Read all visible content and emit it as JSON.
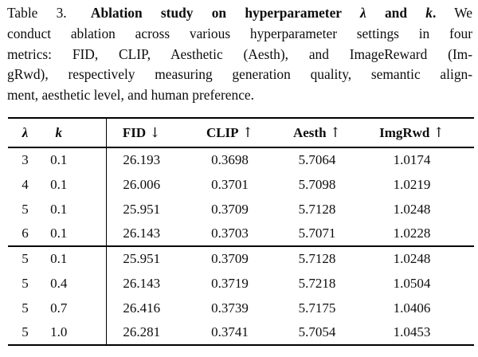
{
  "colors": {
    "text": "#0d0d0d",
    "background": "#ffffff",
    "rules": "#000000"
  },
  "caption": {
    "label": "Table 3.",
    "title_bold": "Ablation study on hyperparameter",
    "lambda_symbol": "λ",
    "and_word": "and",
    "k_symbol": "k",
    "period": ".",
    "line1_tail": "We",
    "line2": "conduct ablation across various hyperparameter settings in four",
    "line3": "metrics: FID, CLIP, Aesthetic (Aesth), and ImageReward (Im-",
    "line4": "gRwd), respectively measuring generation quality, semantic align-",
    "line5": "ment, aesthetic level, and human preference."
  },
  "table": {
    "headers": [
      {
        "label": "λ",
        "arrow": ""
      },
      {
        "label": "k",
        "arrow": ""
      },
      {
        "label": "FID",
        "arrow": "↓"
      },
      {
        "label": "CLIP",
        "arrow": "↑"
      },
      {
        "label": "Aesth",
        "arrow": "↑"
      },
      {
        "label": "ImgRwd",
        "arrow": "↑"
      }
    ],
    "sections": [
      {
        "rows": [
          {
            "lambda": "3",
            "k": "0.1",
            "fid": "26.193",
            "clip": "0.3698",
            "aesth": "5.7064",
            "imgrwd": "1.0174",
            "bold": []
          },
          {
            "lambda": "4",
            "k": "0.1",
            "fid": "26.006",
            "clip": "0.3701",
            "aesth": "5.7098",
            "imgrwd": "1.0219",
            "bold": []
          },
          {
            "lambda": "5",
            "k": "0.1",
            "fid": "25.951",
            "clip": "0.3709",
            "aesth": "5.7128",
            "imgrwd": "1.0248",
            "bold": [
              "fid",
              "clip",
              "aesth",
              "imgrwd"
            ]
          },
          {
            "lambda": "6",
            "k": "0.1",
            "fid": "26.143",
            "clip": "0.3703",
            "aesth": "5.7071",
            "imgrwd": "1.0228",
            "bold": []
          }
        ]
      },
      {
        "rows": [
          {
            "lambda": "5",
            "k": "0.1",
            "fid": "25.951",
            "clip": "0.3709",
            "aesth": "5.7128",
            "imgrwd": "1.0248",
            "bold": [
              "fid"
            ]
          },
          {
            "lambda": "5",
            "k": "0.4",
            "fid": "26.143",
            "clip": "0.3719",
            "aesth": "5.7218",
            "imgrwd": "1.0504",
            "bold": [
              "aesth",
              "imgrwd"
            ]
          },
          {
            "lambda": "5",
            "k": "0.7",
            "fid": "26.416",
            "clip": "0.3739",
            "aesth": "5.7175",
            "imgrwd": "1.0406",
            "bold": []
          },
          {
            "lambda": "5",
            "k": "1.0",
            "fid": "26.281",
            "clip": "0.3741",
            "aesth": "5.7054",
            "imgrwd": "1.0453",
            "bold": [
              "clip"
            ]
          }
        ]
      }
    ]
  }
}
